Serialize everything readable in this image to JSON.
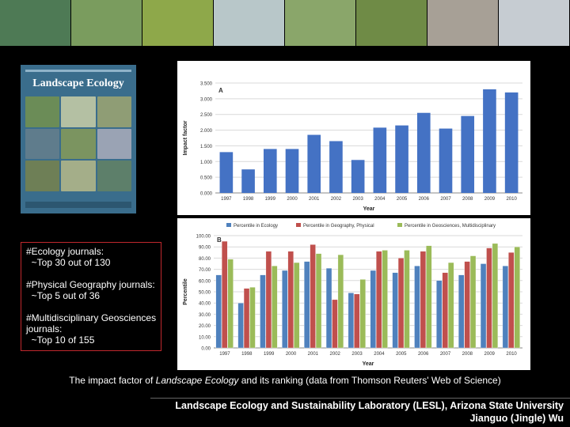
{
  "banner": {
    "tiles": [
      "#4e7a55",
      "#7a9c5e",
      "#8ea84a",
      "#b8c7c9",
      "#8aa66a",
      "#6f8b46",
      "#a7a096",
      "#c6ccd2"
    ]
  },
  "cover": {
    "title": "Landscape Ecology",
    "colors": {
      "background": "#3a6d8c",
      "photos": [
        "#6b8c57",
        "#b4c0a3",
        "#8f9d75",
        "#5f7c8c",
        "#7b9460",
        "#9aa3b4",
        "#6e7f56",
        "#a4ae89",
        "#5d7f6a"
      ]
    }
  },
  "textbox": {
    "lines": [
      "#Ecology journals:",
      "  ~Top 30 out of 130",
      "",
      "#Physical Geography journals:",
      "  ~Top 5 out of 36",
      "",
      "#Multidisciplinary Geosciences",
      "journals:",
      "  ~Top 10 of 155"
    ]
  },
  "caption": {
    "before": "The impact factor of ",
    "italic": "Landscape Ecology",
    "after": " and its ranking (data from Thomson Reuters' Web of Science)"
  },
  "footer": {
    "line1": "Landscape Ecology and Sustainability Laboratory (LESL), Arizona State University",
    "line2": "Jianguo (Jingle) Wu"
  },
  "chart_data": [
    {
      "type": "bar",
      "panel_label": "A",
      "categories": [
        "1997",
        "1998",
        "1999",
        "2000",
        "2001",
        "2002",
        "2003",
        "2004",
        "2005",
        "2006",
        "2007",
        "2008",
        "2009",
        "2010"
      ],
      "values": [
        1.3,
        0.75,
        1.4,
        1.4,
        1.85,
        1.65,
        1.05,
        2.08,
        2.15,
        2.55,
        2.05,
        2.45,
        3.3,
        3.2
      ],
      "xlabel": "Year",
      "ylabel": "Impact factor",
      "ylim": [
        0,
        3.5
      ],
      "yticks": [
        "0.000",
        "0.500",
        "1.000",
        "1.500",
        "2.000",
        "2.500",
        "3.000",
        "3.500"
      ],
      "colors": [
        "#4472c4"
      ],
      "grid": true
    },
    {
      "type": "bar",
      "panel_label": "B",
      "categories": [
        "1997",
        "1998",
        "1999",
        "2000",
        "2001",
        "2002",
        "2003",
        "2004",
        "2005",
        "2006",
        "2007",
        "2008",
        "2009",
        "2010"
      ],
      "series": [
        {
          "name": "Percentile in Ecology",
          "values": [
            65,
            40,
            65,
            69,
            77,
            71,
            49,
            69,
            67,
            73,
            60,
            65,
            75,
            73
          ],
          "color": "#4f81bd"
        },
        {
          "name": "Percentile in Geography, Physical",
          "values": [
            95,
            53,
            86,
            86,
            92,
            43,
            48,
            86,
            80,
            86,
            67,
            77,
            89,
            85
          ],
          "color": "#c0504d"
        },
        {
          "name": "Percentile in Geosciences, Multidisciplinary",
          "values": [
            79,
            54,
            73,
            76,
            84,
            83,
            61,
            87,
            87,
            91,
            76,
            82,
            93,
            90
          ],
          "color": "#9bbb59"
        }
      ],
      "xlabel": "Year",
      "ylabel": "Percentile",
      "ylim": [
        0,
        100
      ],
      "yticks": [
        "0.00",
        "10.00",
        "20.00",
        "30.00",
        "40.00",
        "50.00",
        "60.00",
        "70.00",
        "80.00",
        "90.00",
        "100.00"
      ],
      "legend": "top",
      "grid": true
    }
  ]
}
